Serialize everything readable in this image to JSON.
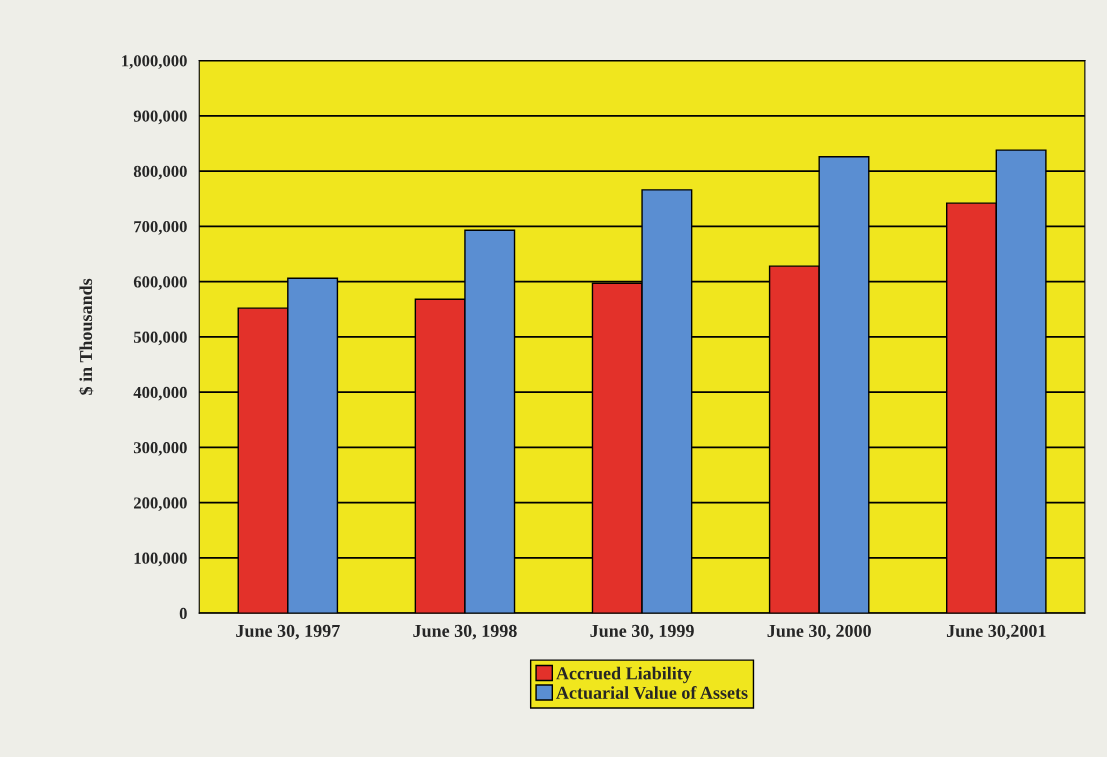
{
  "chart_data": {
    "type": "bar",
    "ylabel": "$ in Thousands",
    "categories": [
      "June 30, 1997",
      "June 30, 1998",
      "June 30, 1999",
      "June 30, 2000",
      "June 30,2001"
    ],
    "series": [
      {
        "name": "Accrued Liability",
        "color": "#e3312a",
        "values": [
          552000,
          568000,
          597000,
          628000,
          742000
        ]
      },
      {
        "name": "Actuarial Value of Assets",
        "color": "#5a8ed2",
        "values": [
          606000,
          693000,
          766000,
          826000,
          838000
        ]
      }
    ],
    "ylim": [
      0,
      1000000
    ],
    "yticks": [
      0,
      {
        "value": 100000,
        "label": "100,000"
      },
      {
        "value": 200000,
        "label": "200,000"
      },
      {
        "value": 300000,
        "label": "300,000"
      },
      {
        "value": 400000,
        "label": "400,000"
      },
      {
        "value": 500000,
        "label": "500,000"
      },
      {
        "value": 600000,
        "label": "600,000"
      },
      {
        "value": 700000,
        "label": "700,000"
      },
      {
        "value": 800000,
        "label": "800,000"
      },
      {
        "value": 900000,
        "label": "900,000"
      },
      {
        "value": 1000000,
        "label": "1,000,000"
      }
    ],
    "grid": "y",
    "legend": "bottom"
  }
}
